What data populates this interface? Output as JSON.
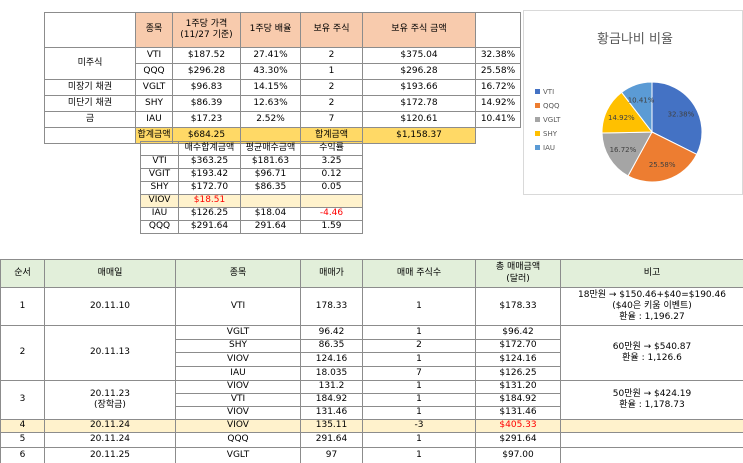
{
  "holdings": {
    "header": [
      "종목",
      "1주당 가격\n(11/27 기준)",
      "1주당 배율",
      "보유 주식",
      "보유 주식 금액"
    ],
    "labels": [
      "미주식",
      "미장기 채권",
      "미단기 채권",
      "금"
    ],
    "rows": [
      [
        "VTI",
        "$187.52",
        "27.41%",
        "2",
        "$375.04",
        "32.38%"
      ],
      [
        "QQQ",
        "$296.28",
        "43.30%",
        "1",
        "$296.28",
        "25.58%"
      ],
      [
        "VGLT",
        "$96.83",
        "14.15%",
        "2",
        "$193.66",
        "16.72%"
      ],
      [
        "SHY",
        "$86.39",
        "12.63%",
        "2",
        "$172.78",
        "14.92%"
      ],
      [
        "IAU",
        "$17.23",
        "2.52%",
        "7",
        "$120.61",
        "10.41%"
      ]
    ],
    "total": [
      "합계금액",
      "$684.25",
      "합계금액",
      "$1,158.37"
    ]
  },
  "purchases": {
    "header": [
      "매수합계금액",
      "평균매수금액",
      "수익률"
    ],
    "rows": [
      [
        "VTI",
        "$363.25",
        "$181.63",
        "3.25"
      ],
      [
        "VGIT",
        "$193.42",
        "$96.71",
        "0.12"
      ],
      [
        "SHY",
        "$172.70",
        "$86.35",
        "0.05"
      ],
      [
        "VIOV",
        "$18.51"
      ],
      [
        "IAU",
        "$126.25",
        "$18.04",
        "-4.46"
      ],
      [
        "QQQ",
        "$291.64",
        "291.64",
        "1.59"
      ]
    ]
  },
  "chart_data": {
    "type": "pie",
    "title": "황금나비 비율",
    "categories": [
      "VTI",
      "QQQ",
      "VGLT",
      "SHY",
      "IAU"
    ],
    "values": [
      32.38,
      25.58,
      16.72,
      14.92,
      10.41
    ],
    "value_labels": [
      "32.38%",
      "25.58%",
      "16.72%",
      "14.92%",
      "10.41%"
    ],
    "colors": [
      "#4472c4",
      "#ed7d31",
      "#a5a5a5",
      "#ffc000",
      "#5b9bd5"
    ],
    "legend": "left"
  },
  "trades": {
    "header": [
      "순서",
      "매매일",
      "종목",
      "매매가",
      "매매 주식수",
      "총 매매금액\n(달러)",
      "비고"
    ],
    "rows": [
      {
        "no": "1",
        "date": "20.11.10",
        "items": [
          [
            "VTI",
            "178.33",
            "1",
            "$178.33"
          ]
        ],
        "note": [
          "18만원 → $150.46+$40=$190.46",
          "($40은 키움 이벤트)",
          "환율 : 1,196.27"
        ]
      },
      {
        "no": "2",
        "date": "20.11.13",
        "items": [
          [
            "VGLT",
            "96.42",
            "1",
            "$96.42"
          ],
          [
            "SHY",
            "86.35",
            "2",
            "$172.70"
          ],
          [
            "VIOV",
            "124.16",
            "1",
            "$124.16"
          ],
          [
            "IAU",
            "18.035",
            "7",
            "$126.25"
          ]
        ],
        "note": [
          "60만원 → $540.87",
          "환율 : 1,126.6"
        ]
      },
      {
        "no": "3",
        "date": "20.11.23\n(장학금)",
        "items": [
          [
            "VIOV",
            "131.2",
            "1",
            "$131.20"
          ],
          [
            "VTI",
            "184.92",
            "1",
            "$184.92"
          ],
          [
            "VIOV",
            "131.46",
            "1",
            "$131.46"
          ]
        ],
        "note": [
          "50만원 → $424.19",
          "환율 : 1,178.73"
        ]
      },
      {
        "no": "4",
        "date": "20.11.24",
        "items": [
          [
            "VIOV",
            "135.11",
            "-3",
            "$405.33"
          ]
        ]
      },
      {
        "no": "5",
        "date": "20.11.24",
        "items": [
          [
            "QQQ",
            "291.64",
            "1",
            "$291.64"
          ]
        ]
      },
      {
        "no": "6",
        "date": "20.11.25",
        "items": [
          [
            "VGLT",
            "97",
            "1",
            "$97.00"
          ]
        ]
      }
    ]
  }
}
